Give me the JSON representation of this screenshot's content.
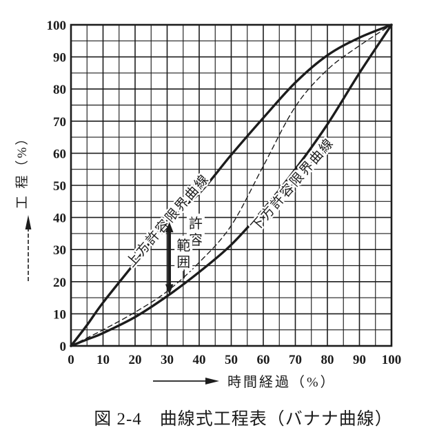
{
  "figure": {
    "caption": "図 2-4　曲線式工程表（バナナ曲線）"
  },
  "colors": {
    "ink": "#1c1c1c",
    "background": "#ffffff",
    "halo": "#ffffff"
  },
  "chart_data": {
    "type": "line",
    "title": "図 2-4　曲線式工程表（バナナ曲線）",
    "xlabel": "時間経過（%）",
    "ylabel": "工 程（%）",
    "xlim": [
      0,
      100
    ],
    "ylim": [
      0,
      100
    ],
    "xticks": [
      0,
      10,
      20,
      30,
      40,
      50,
      60,
      70,
      80,
      90,
      100
    ],
    "yticks": [
      0,
      10,
      20,
      30,
      40,
      50,
      60,
      70,
      80,
      90,
      100
    ],
    "grid": "on",
    "grid_minor_step": 5,
    "grid_major_step": 10,
    "series": [
      {
        "id": "upper-limit-curve",
        "label": "上方許容限界曲線",
        "style": "solid",
        "stroke_width": 3.4,
        "points": [
          [
            0,
            0
          ],
          [
            5,
            6.5
          ],
          [
            10,
            13.5
          ],
          [
            20,
            26
          ],
          [
            30,
            39
          ],
          [
            40,
            47.5
          ],
          [
            50,
            59.5
          ],
          [
            60,
            71
          ],
          [
            70,
            82
          ],
          [
            80,
            90.5
          ],
          [
            90,
            96
          ],
          [
            100,
            100
          ]
        ]
      },
      {
        "id": "dashed-center-curve",
        "label": "",
        "style": "dashed",
        "stroke_width": 1.4,
        "points": [
          [
            0,
            0
          ],
          [
            5,
            2.5
          ],
          [
            10,
            5
          ],
          [
            20,
            10.5
          ],
          [
            30,
            17
          ],
          [
            40,
            26
          ],
          [
            50,
            37.5
          ],
          [
            60,
            56
          ],
          [
            70,
            74.5
          ],
          [
            80,
            86
          ],
          [
            90,
            93.5
          ],
          [
            100,
            100
          ]
        ]
      },
      {
        "id": "lower-limit-curve",
        "label": "下方許容限界曲線",
        "style": "solid",
        "stroke_width": 3.4,
        "points": [
          [
            0,
            0
          ],
          [
            5,
            2
          ],
          [
            10,
            4
          ],
          [
            20,
            9
          ],
          [
            30,
            15.5
          ],
          [
            40,
            23
          ],
          [
            50,
            31.5
          ],
          [
            60,
            42.5
          ],
          [
            70,
            55
          ],
          [
            80,
            69
          ],
          [
            90,
            85
          ],
          [
            100,
            100
          ]
        ]
      }
    ],
    "annotations": {
      "upper_curve_label": {
        "text": "上方許容限界曲線",
        "x": 30.1,
        "y": 39.2,
        "angle": -49
      },
      "lower_curve_label": {
        "text": "下方許容限界曲線",
        "x": 69.0,
        "y": 50.4,
        "angle": -49
      },
      "tolerance_arrow": {
        "x": 30.7,
        "y1": 16,
        "y2": 38.6
      },
      "tolerance_label": {
        "columns": [
          {
            "text": "許容",
            "x": 38.9,
            "y": 38.4
          },
          {
            "text": "範囲",
            "x": 35.1,
            "y": 31.5
          }
        ],
        "leader": {
          "x": 35.3,
          "y1": 23.8,
          "y2": 21.0
        }
      }
    }
  }
}
